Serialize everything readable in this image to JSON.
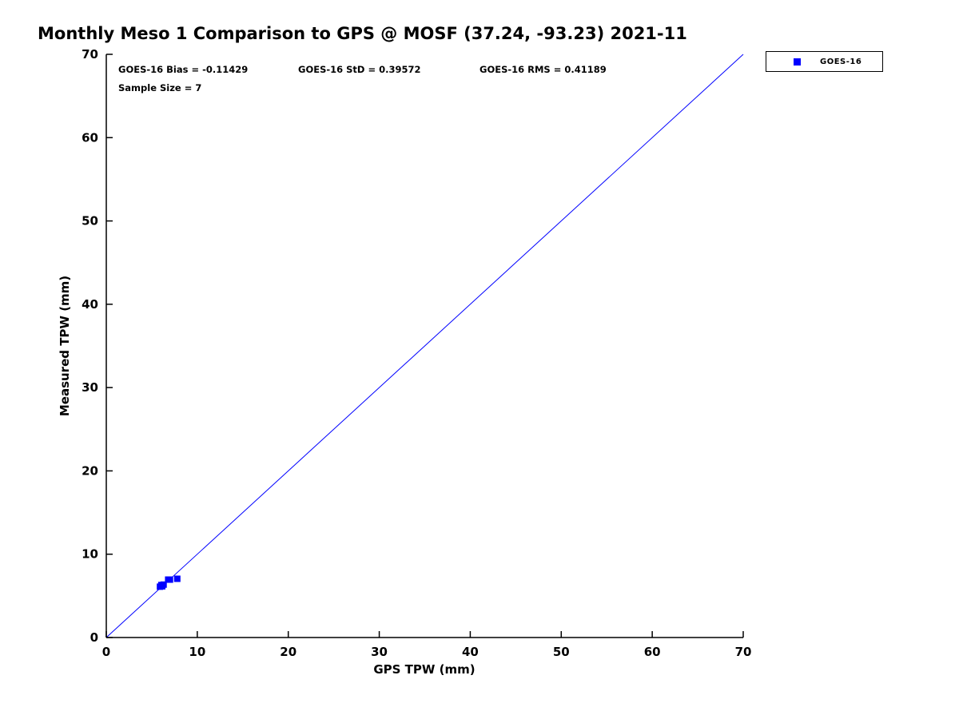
{
  "title": "Monthly Meso 1 Comparison to GPS @ MOSF (37.24, -93.23) 2021-11",
  "annotations": {
    "bias": "GOES-16 Bias = -0.11429",
    "std": "GOES-16 StD = 0.39572",
    "rms": "GOES-16 RMS = 0.41189",
    "sample_size": "Sample Size = 7"
  },
  "legend": {
    "entries": [
      {
        "label": "GOES-16",
        "marker": "square",
        "marker_color": "#0000ff"
      }
    ]
  },
  "chart_data": {
    "type": "scatter",
    "title": "Monthly Meso 1 Comparison to GPS @ MOSF (37.24, -93.23) 2021-11",
    "xlabel": "GPS TPW (mm)",
    "ylabel": "Measured TPW (mm)",
    "xlim": [
      0,
      70
    ],
    "ylim": [
      0,
      70
    ],
    "xticks": [
      0,
      10,
      20,
      30,
      40,
      50,
      60,
      70
    ],
    "yticks": [
      0,
      10,
      20,
      30,
      40,
      50,
      60,
      70
    ],
    "grid": false,
    "legend_position": "top-right-outside",
    "axis_color": "#000000",
    "series": [
      {
        "name": "GOES-16",
        "marker": "square",
        "color": "#0000ff",
        "points": [
          [
            5.9,
            6.1
          ],
          [
            6.05,
            6.3
          ],
          [
            6.15,
            6.15
          ],
          [
            6.3,
            6.35
          ],
          [
            6.8,
            6.95
          ],
          [
            7.0,
            6.95
          ],
          [
            7.8,
            7.05
          ]
        ]
      }
    ],
    "reference_line": {
      "description": "1:1 identity line",
      "from": [
        0,
        0
      ],
      "to": [
        70,
        70
      ],
      "color": "#0000ff"
    },
    "stats": {
      "bias": -0.11429,
      "std": 0.39572,
      "rms": 0.41189,
      "sample_size": 7
    }
  }
}
